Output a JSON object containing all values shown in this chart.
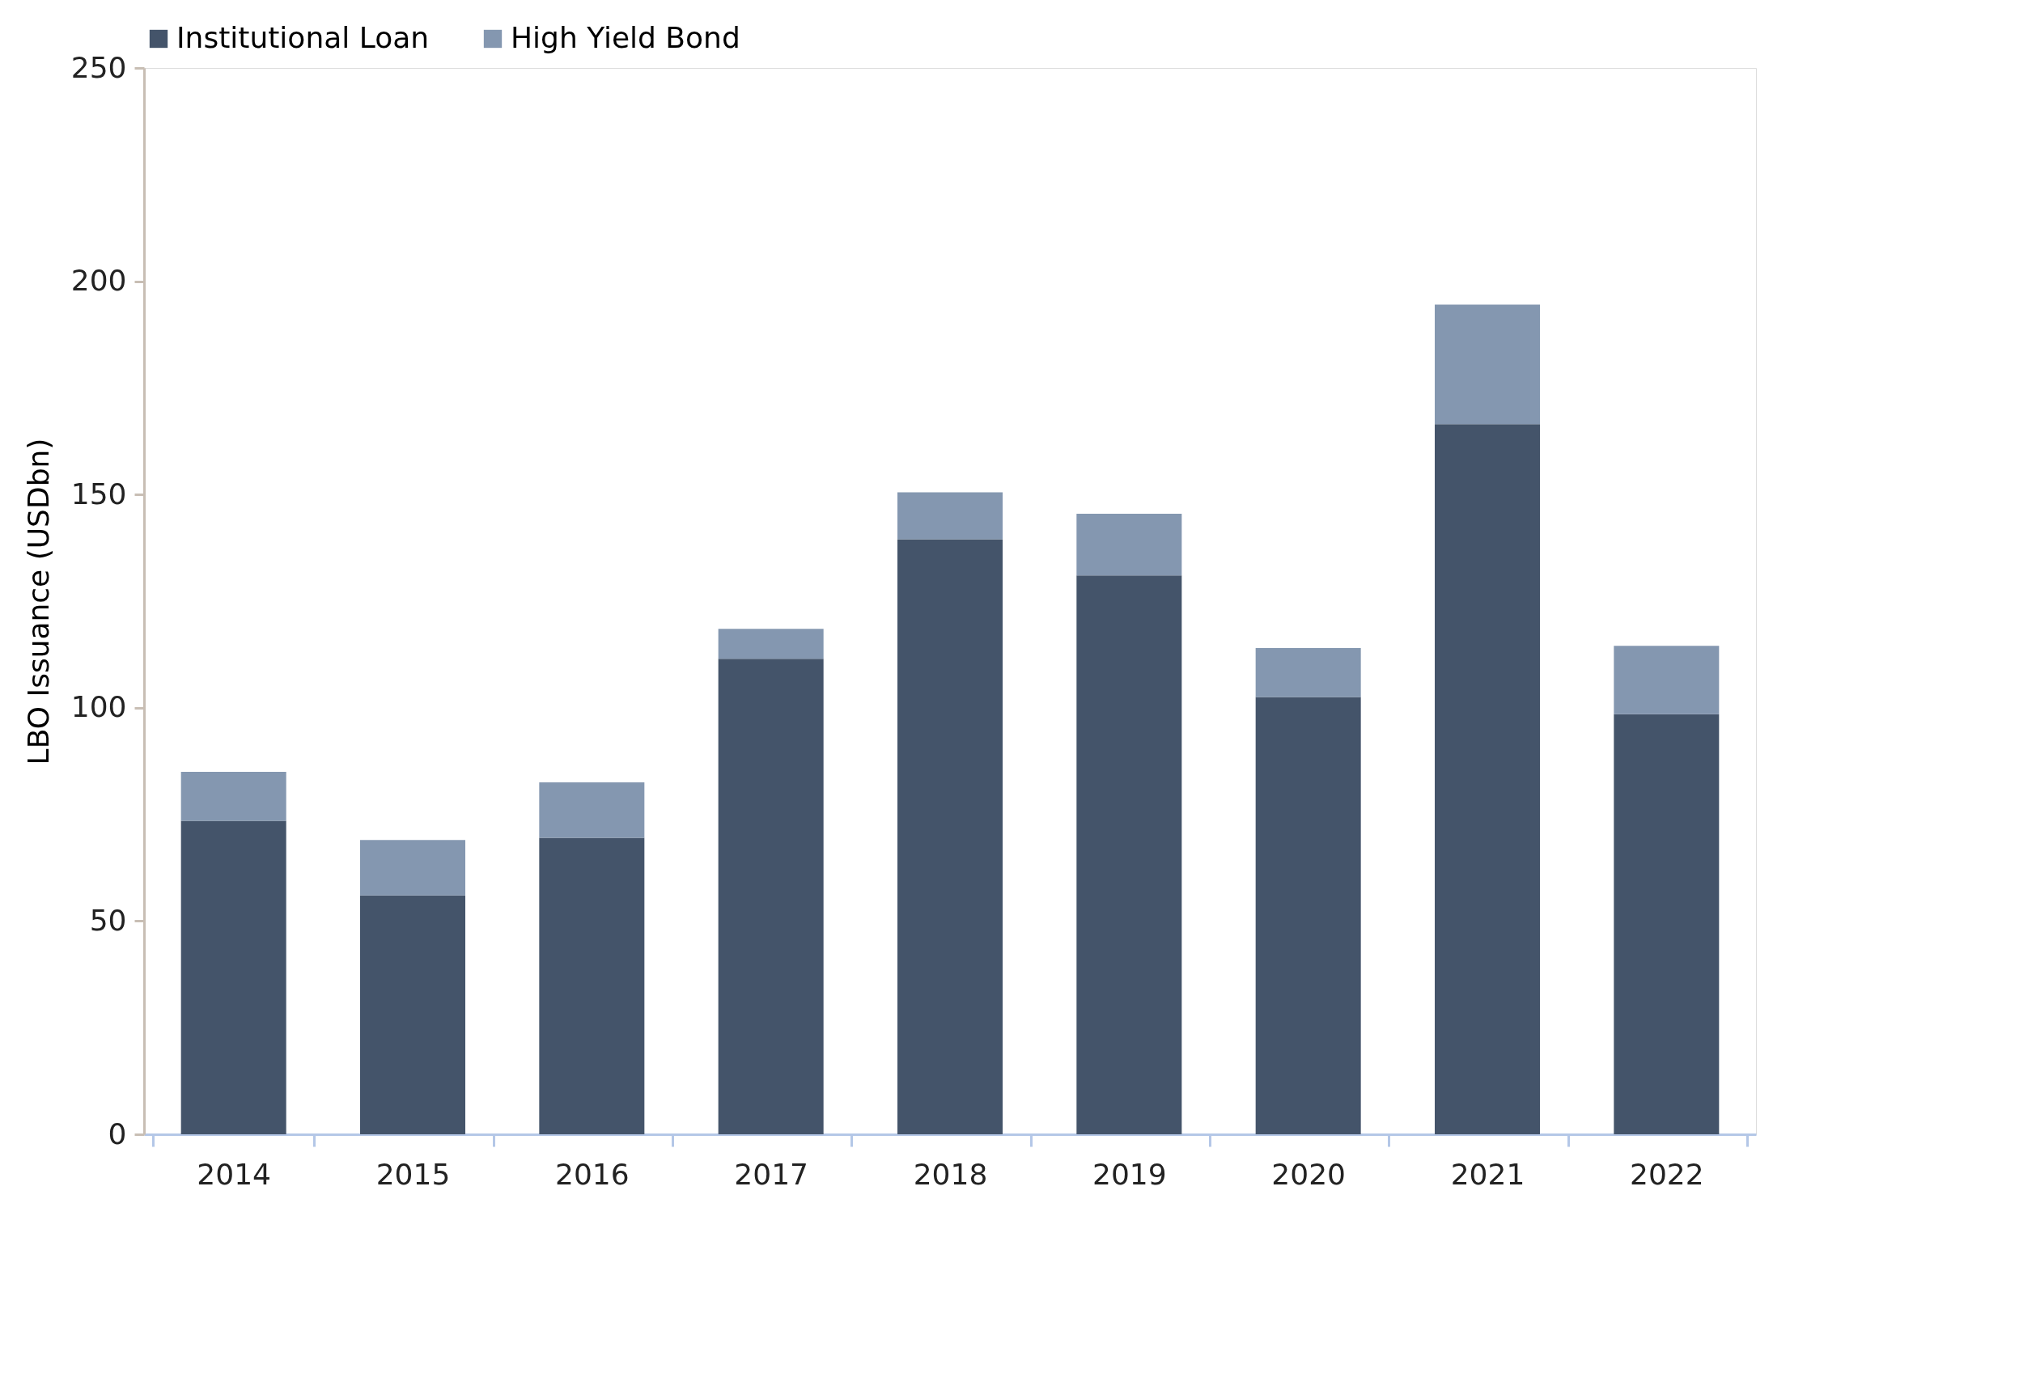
{
  "chart_data": {
    "type": "bar",
    "ylabel": "LBO Issuance (USDbn)",
    "categories": [
      "2014",
      "2015",
      "2016",
      "2017",
      "2018",
      "2019",
      "2020",
      "2021",
      "2022"
    ],
    "series": [
      {
        "name": "Institutional Loan",
        "color": "#44546a",
        "values": [
          73.5,
          56,
          69.5,
          111.5,
          139.5,
          131,
          102.5,
          166.5,
          98.5
        ]
      },
      {
        "name": "High Yield Bond",
        "color": "#8497b0",
        "values": [
          11.5,
          13,
          13,
          7,
          11,
          14.5,
          11.5,
          28,
          16
        ]
      }
    ],
    "stacked": true,
    "ylim": [
      0,
      250
    ],
    "yticks": [
      0,
      50,
      100,
      150,
      200,
      250
    ],
    "grid": false,
    "legend": "top"
  }
}
